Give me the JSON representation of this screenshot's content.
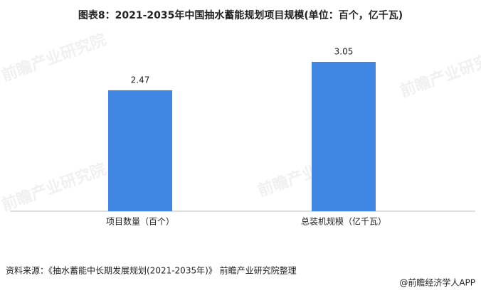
{
  "chart_data": {
    "type": "bar",
    "title": "图表8：2021-2035年中国抽水蓄能规划项目规模(单位：百个，亿千瓦)",
    "categories": [
      "项目数量（百个）",
      "总装机规模（亿千瓦）"
    ],
    "values": [
      2.47,
      3.05
    ],
    "color": "#3f87e3",
    "grid": false,
    "source": "资料来源：《抽水蓄能中长期发展规划(2021-2035年)》 前瞻产业研究院整理",
    "footer": "@前瞻经济学人APP",
    "watermark": "前瞻产业研究院"
  }
}
